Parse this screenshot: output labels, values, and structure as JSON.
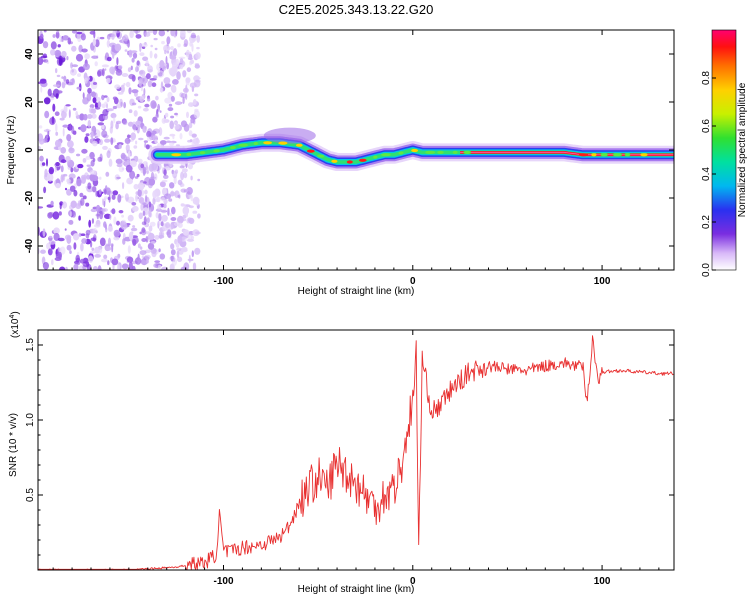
{
  "chart_data": [
    {
      "type": "heatmap",
      "title": "C2E5.2025.343.13.22.G20",
      "xlabel": "Height of straight line (km)",
      "ylabel": "Frequency (Hz)",
      "xlim": [
        -198,
        138
      ],
      "ylim": [
        -50,
        50
      ],
      "x_ticks": [
        -100,
        0,
        100
      ],
      "x_tick_labels": [
        "-100",
        "0",
        "100"
      ],
      "y_ticks": [
        -40,
        -20,
        0,
        20,
        40
      ],
      "y_tick_labels": [
        "-40",
        "-20",
        "0",
        "20",
        "40"
      ],
      "noise_region_x": [
        -198,
        -113
      ],
      "ridge": {
        "x": [
          -135,
          -120,
          -110,
          -100,
          -90,
          -80,
          -70,
          -60,
          -55,
          -50,
          -45,
          -40,
          -35,
          -30,
          -25,
          -20,
          -15,
          -10,
          -5,
          0,
          5,
          10,
          15,
          20,
          30,
          40,
          50,
          60,
          70,
          80,
          90,
          100,
          110,
          120,
          138
        ],
        "freq_hz": [
          -2,
          -2,
          -1,
          0,
          2,
          3,
          3,
          2,
          0,
          -2,
          -4,
          -5,
          -5,
          -5,
          -4,
          -3,
          -2,
          -2,
          -1,
          0,
          -1,
          -1,
          -1,
          -1,
          -1,
          -1,
          -1,
          -1,
          -1,
          -1,
          -2,
          -2,
          -2,
          -2,
          -2
        ]
      },
      "colorbar": {
        "label": "Normalized spectral amplitude",
        "range": [
          0,
          1
        ],
        "ticks": [
          0.0,
          0.2,
          0.4,
          0.6,
          0.8
        ],
        "tick_labels": [
          "0.0",
          "0.2",
          "0.4",
          "0.6",
          "0.8"
        ]
      }
    },
    {
      "type": "line",
      "xlabel": "Height of straight line (km)",
      "ylabel": "SNR (10 * v/v)",
      "exponent_label": "(x10",
      "exponent_power": "4",
      "exponent_close": ")",
      "xlim": [
        -198,
        138
      ],
      "ylim": [
        0.0,
        1.6
      ],
      "x_ticks": [
        -100,
        0,
        100
      ],
      "x_tick_labels": [
        "-100",
        "0",
        "100"
      ],
      "y_ticks": [
        0.5,
        1.0,
        1.5
      ],
      "y_tick_labels": [
        "0.5",
        "1.0",
        "1.5"
      ],
      "series": [
        {
          "name": "SNR",
          "color": "#e83030",
          "x": [
            -198,
            -150,
            -125,
            -110,
            -104,
            -102,
            -100,
            -95,
            -90,
            -80,
            -70,
            -65,
            -60,
            -55,
            -50,
            -45,
            -40,
            -35,
            -30,
            -25,
            -20,
            -15,
            -10,
            -5,
            -3,
            0,
            2,
            3,
            5,
            10,
            15,
            20,
            30,
            40,
            50,
            60,
            70,
            80,
            90,
            92,
            95,
            98,
            100,
            110,
            120,
            130,
            138
          ],
          "y": [
            0.0,
            0.0,
            0.02,
            0.05,
            0.1,
            0.38,
            0.12,
            0.13,
            0.15,
            0.17,
            0.22,
            0.3,
            0.45,
            0.55,
            0.62,
            0.55,
            0.72,
            0.65,
            0.58,
            0.5,
            0.42,
            0.5,
            0.55,
            0.72,
            0.95,
            1.1,
            1.45,
            0.05,
            1.4,
            1.05,
            1.1,
            1.2,
            1.32,
            1.36,
            1.34,
            1.33,
            1.36,
            1.38,
            1.35,
            1.1,
            1.55,
            1.25,
            1.32,
            1.33,
            1.32,
            1.31,
            1.31
          ]
        }
      ]
    }
  ]
}
